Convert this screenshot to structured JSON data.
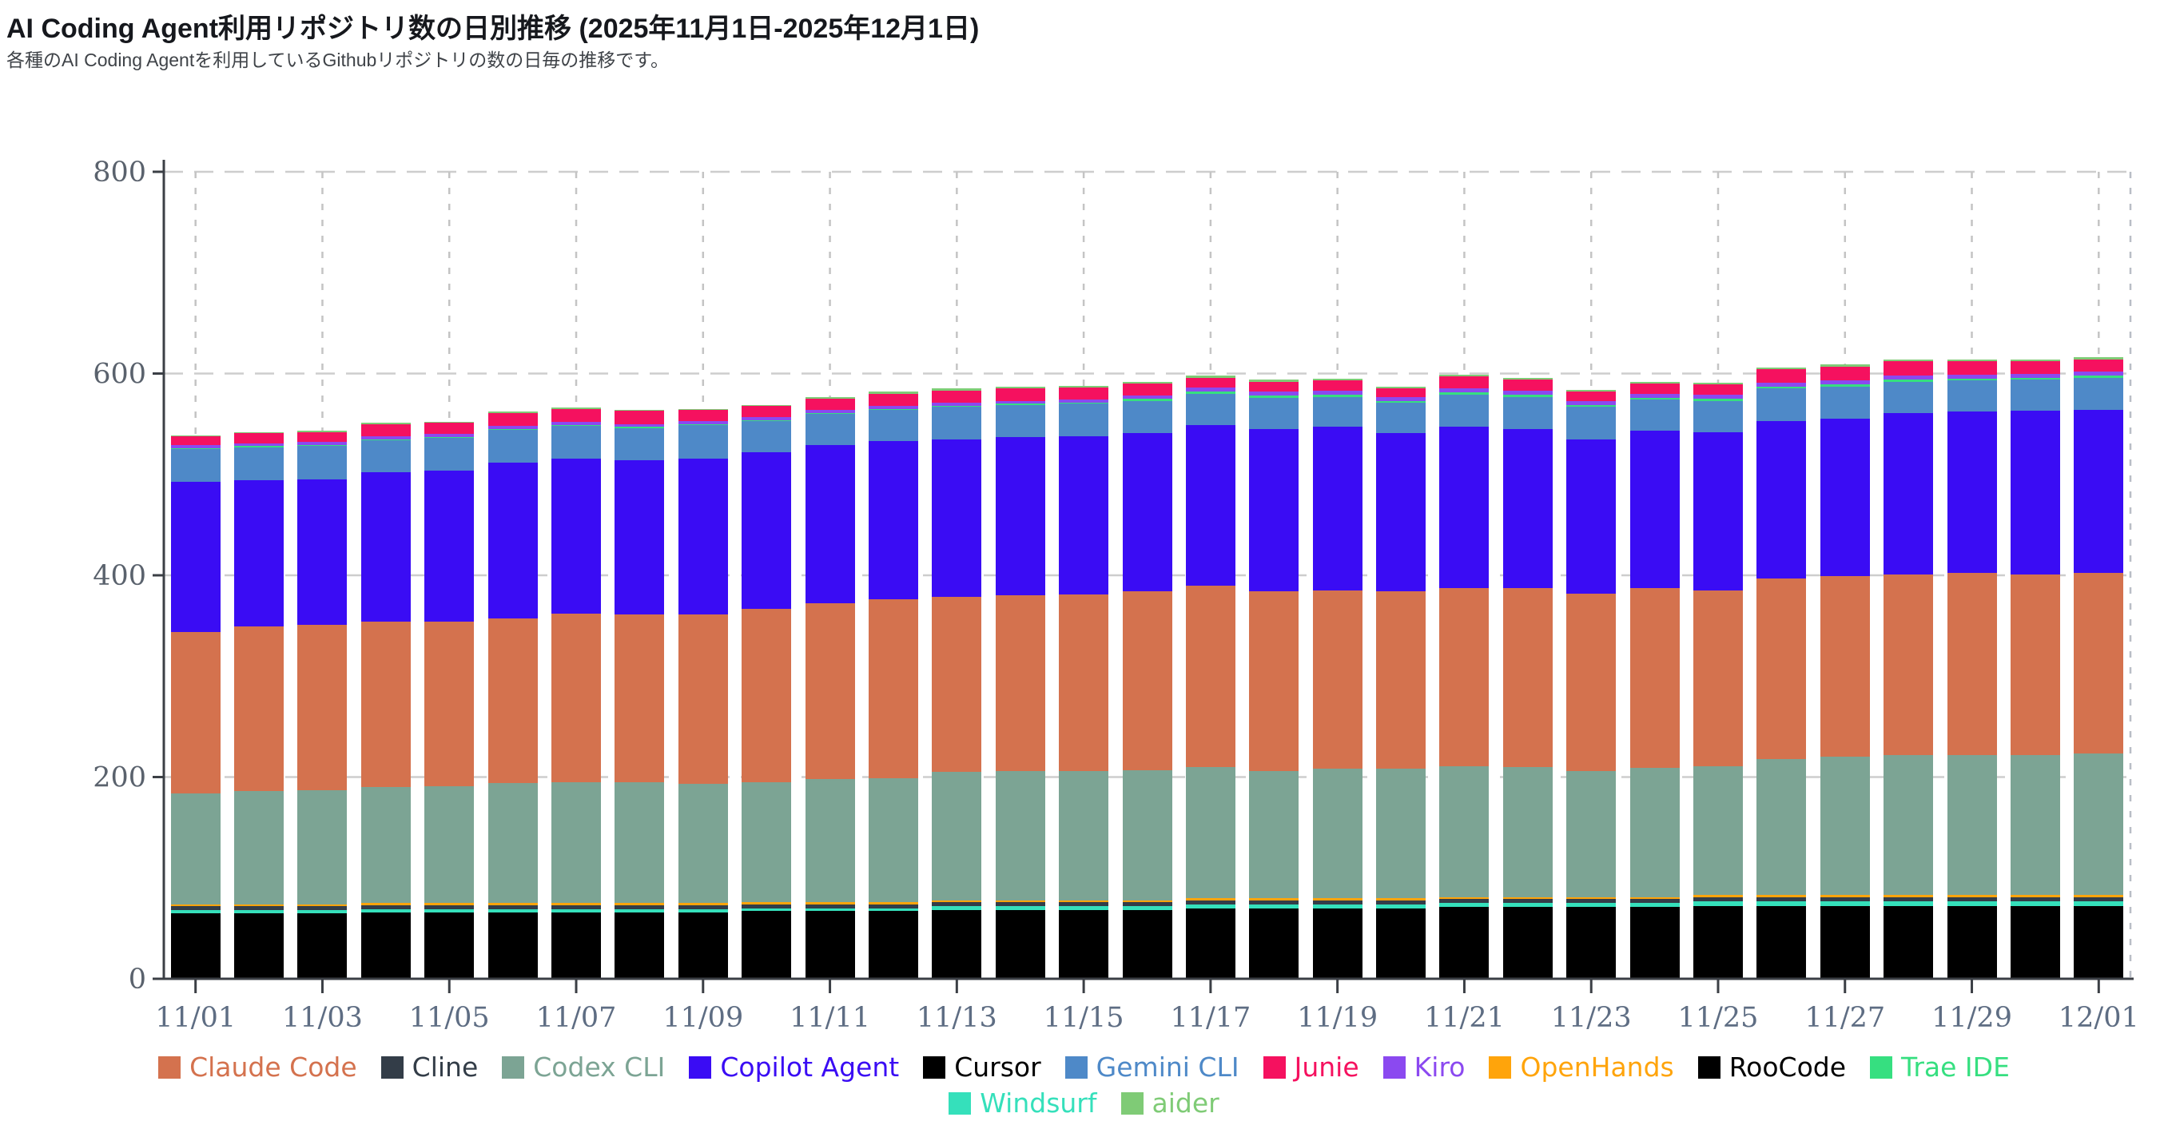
{
  "page": {
    "title": "AI Coding Agent利用リポジトリ数の日別推移 (2025年11月1日-2025年12月1日)",
    "subtitle": "各種のAI Coding Agentを利用しているGithubリポジトリの数の日毎の推移です。"
  },
  "chart_data": {
    "type": "bar",
    "stacked": true,
    "title": "AI Coding Agent利用リポジトリ数の日別推移 (2025年11月1日-2025年12月1日)",
    "xlabel": "",
    "ylabel": "",
    "ylim": [
      0,
      800
    ],
    "yticks": [
      0,
      200,
      400,
      600,
      800
    ],
    "grid": "dashed",
    "legend_position": "bottom",
    "x_tick_step": 2,
    "categories": [
      "11/01",
      "11/02",
      "11/03",
      "11/04",
      "11/05",
      "11/06",
      "11/07",
      "11/08",
      "11/09",
      "11/10",
      "11/11",
      "11/12",
      "11/13",
      "11/14",
      "11/15",
      "11/16",
      "11/17",
      "11/18",
      "11/19",
      "11/20",
      "11/21",
      "11/22",
      "11/23",
      "11/24",
      "11/25",
      "11/26",
      "11/27",
      "11/28",
      "11/29",
      "11/30",
      "12/01"
    ],
    "stack_order_bottom_to_top": [
      "Cursor",
      "RooCode",
      "Windsurf",
      "Cline",
      "OpenHands",
      "Codex CLI",
      "Claude Code",
      "Copilot Agent",
      "Gemini CLI",
      "Trae IDE",
      "Kiro",
      "Junie",
      "aider"
    ],
    "legend_rows": [
      [
        "Claude Code",
        "Cline",
        "Codex CLI",
        "Copilot Agent",
        "Cursor",
        "Gemini CLI",
        "Junie",
        "Kiro",
        "OpenHands",
        "RooCode",
        "Trae IDE"
      ],
      [
        "Windsurf",
        "aider"
      ]
    ],
    "series": [
      {
        "name": "Claude Code",
        "color": "#D4724E",
        "values": [
          160,
          163,
          164,
          164,
          163,
          163,
          167,
          166,
          168,
          172,
          174,
          177,
          174,
          174,
          175,
          177,
          180,
          178,
          177,
          176,
          176,
          177,
          176,
          178,
          174,
          179,
          179,
          179,
          180,
          179,
          179
        ]
      },
      {
        "name": "Cline",
        "color": "#333D48",
        "values": [
          4,
          4,
          4,
          4,
          4,
          4,
          4,
          4,
          4,
          4,
          4,
          4,
          4,
          4,
          4,
          4,
          4,
          4,
          4,
          4,
          4,
          4,
          4,
          4,
          4,
          4,
          4,
          4,
          4,
          4,
          4
        ]
      },
      {
        "name": "Codex CLI",
        "color": "#7CA494",
        "values": [
          110,
          112,
          113,
          115,
          116,
          119,
          120,
          120,
          118,
          119,
          122,
          123,
          127,
          128,
          128,
          129,
          130,
          126,
          128,
          128,
          130,
          129,
          125,
          128,
          128,
          135,
          137,
          139,
          139,
          139,
          140
        ]
      },
      {
        "name": "Copilot Agent",
        "color": "#3A0CF4",
        "values": [
          149,
          145,
          144,
          148,
          150,
          155,
          154,
          153,
          155,
          155,
          157,
          157,
          156,
          157,
          157,
          157,
          159,
          161,
          162,
          157,
          160,
          158,
          153,
          156,
          157,
          156,
          156,
          160,
          160,
          162,
          162
        ]
      },
      {
        "name": "Cursor",
        "color": "#000000",
        "values": [
          63,
          63,
          63,
          64,
          64,
          64,
          64,
          64,
          64,
          65,
          65,
          65,
          66,
          66,
          66,
          66,
          68,
          68,
          68,
          68,
          69,
          69,
          69,
          69,
          70,
          70,
          70,
          70,
          70,
          70,
          70
        ]
      },
      {
        "name": "Gemini CLI",
        "color": "#4E89C8",
        "values": [
          32,
          33,
          33,
          32,
          32,
          32,
          32,
          32,
          33,
          31,
          31,
          31,
          32,
          32,
          32,
          32,
          31,
          31,
          30,
          30,
          32,
          32,
          32,
          31,
          31,
          32,
          32,
          31,
          31,
          31,
          32
        ]
      },
      {
        "name": "Junie",
        "color": "#F5115F",
        "values": [
          9,
          10,
          10,
          12,
          11,
          13,
          13,
          13,
          11,
          11,
          11,
          12,
          12,
          12,
          12,
          12,
          10,
          10,
          10,
          8,
          12,
          11,
          9,
          10,
          10,
          13,
          14,
          14,
          13,
          12,
          12
        ]
      },
      {
        "name": "Kiro",
        "color": "#8B49F0",
        "values": [
          3,
          3,
          3,
          3,
          3,
          3,
          3,
          3,
          3,
          3,
          3,
          3,
          3,
          3,
          3,
          3,
          4,
          4,
          4,
          4,
          4,
          4,
          4,
          4,
          4,
          4,
          4,
          4,
          4,
          4,
          4
        ]
      },
      {
        "name": "OpenHands",
        "color": "#FFA40B",
        "values": [
          2,
          2,
          2,
          2,
          2,
          2,
          2,
          2,
          2,
          2,
          2,
          2,
          2,
          2,
          2,
          2,
          2,
          2,
          2,
          2,
          2,
          2,
          2,
          2,
          2,
          2,
          2,
          2,
          2,
          2,
          2
        ]
      },
      {
        "name": "RooCode",
        "color": "#000000",
        "values": [
          2,
          2,
          2,
          2,
          2,
          2,
          2,
          2,
          2,
          2,
          2,
          2,
          2,
          2,
          2,
          2,
          2,
          2,
          2,
          2,
          2,
          2,
          2,
          2,
          2,
          2,
          2,
          2,
          2,
          2,
          2
        ]
      },
      {
        "name": "Trae IDE",
        "color": "#36DF80",
        "values": [
          1,
          1,
          1,
          1,
          1,
          1,
          1,
          1,
          1,
          1,
          1,
          1,
          1,
          1,
          1,
          2,
          2,
          2,
          2,
          2,
          2,
          2,
          2,
          2,
          2,
          2,
          2,
          2,
          2,
          2,
          2
        ]
      },
      {
        "name": "Windsurf",
        "color": "#35E0BB",
        "values": [
          3,
          3,
          3,
          3,
          3,
          3,
          3,
          3,
          3,
          3,
          3,
          3,
          4,
          4,
          4,
          4,
          4,
          4,
          4,
          4,
          4,
          4,
          4,
          4,
          5,
          5,
          5,
          5,
          5,
          5,
          5
        ]
      },
      {
        "name": "aider",
        "color": "#7FCB76",
        "values": [
          1,
          1,
          1,
          1,
          1,
          1,
          1,
          1,
          1,
          1,
          2,
          2,
          2,
          2,
          2,
          2,
          2,
          2,
          2,
          2,
          2,
          2,
          2,
          2,
          2,
          2,
          2,
          2,
          2,
          2,
          2
        ]
      }
    ],
    "totals_note": "stacked totals rise from ~539 on 11/01 to ~616 on 12/01"
  }
}
